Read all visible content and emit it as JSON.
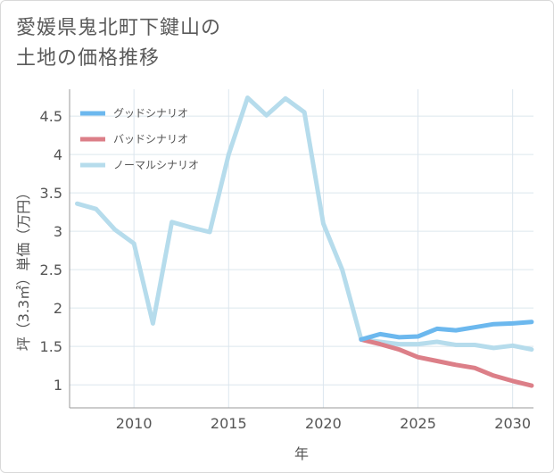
{
  "title_lines": [
    "愛媛県鬼北町下鍵山の",
    "土地の価格推移"
  ],
  "chart_data": {
    "type": "line",
    "xlabel": "年",
    "ylabel": "坪（3.3㎡）単価（万円）",
    "xlim": [
      2006.6,
      2031.1
    ],
    "ylim": [
      0.7,
      4.85
    ],
    "x_ticks": [
      2010,
      2015,
      2020,
      2025,
      2030
    ],
    "y_ticks": [
      1,
      1.5,
      2,
      2.5,
      3,
      3.5,
      4,
      4.5
    ],
    "grid": true,
    "legend_position": "top-left",
    "series": [
      {
        "name": "グッドシナリオ",
        "color": "#6cb8ee",
        "x": [
          2022,
          2023,
          2024,
          2025,
          2026,
          2027,
          2028,
          2029,
          2030,
          2031
        ],
        "y": [
          1.59,
          1.66,
          1.62,
          1.63,
          1.73,
          1.71,
          1.75,
          1.79,
          1.8,
          1.82
        ]
      },
      {
        "name": "バッドシナリオ",
        "color": "#dc7f88",
        "x": [
          2022,
          2023,
          2024,
          2025,
          2026,
          2027,
          2028,
          2029,
          2030,
          2031
        ],
        "y": [
          1.59,
          1.53,
          1.46,
          1.36,
          1.31,
          1.26,
          1.22,
          1.12,
          1.05,
          0.99
        ]
      },
      {
        "name": "ノーマルシナリオ",
        "color": "#b6dcec",
        "x": [
          2007,
          2008,
          2009,
          2010,
          2011,
          2012,
          2013,
          2014,
          2015,
          2016,
          2017,
          2018,
          2019,
          2020,
          2021,
          2022,
          2023,
          2024,
          2025,
          2026,
          2027,
          2028,
          2029,
          2030,
          2031
        ],
        "y": [
          3.36,
          3.29,
          3.02,
          2.84,
          1.8,
          3.12,
          3.05,
          2.99,
          4.0,
          4.74,
          4.51,
          4.73,
          4.55,
          3.1,
          2.5,
          1.59,
          1.56,
          1.53,
          1.53,
          1.56,
          1.52,
          1.52,
          1.48,
          1.51,
          1.46
        ]
      }
    ]
  }
}
